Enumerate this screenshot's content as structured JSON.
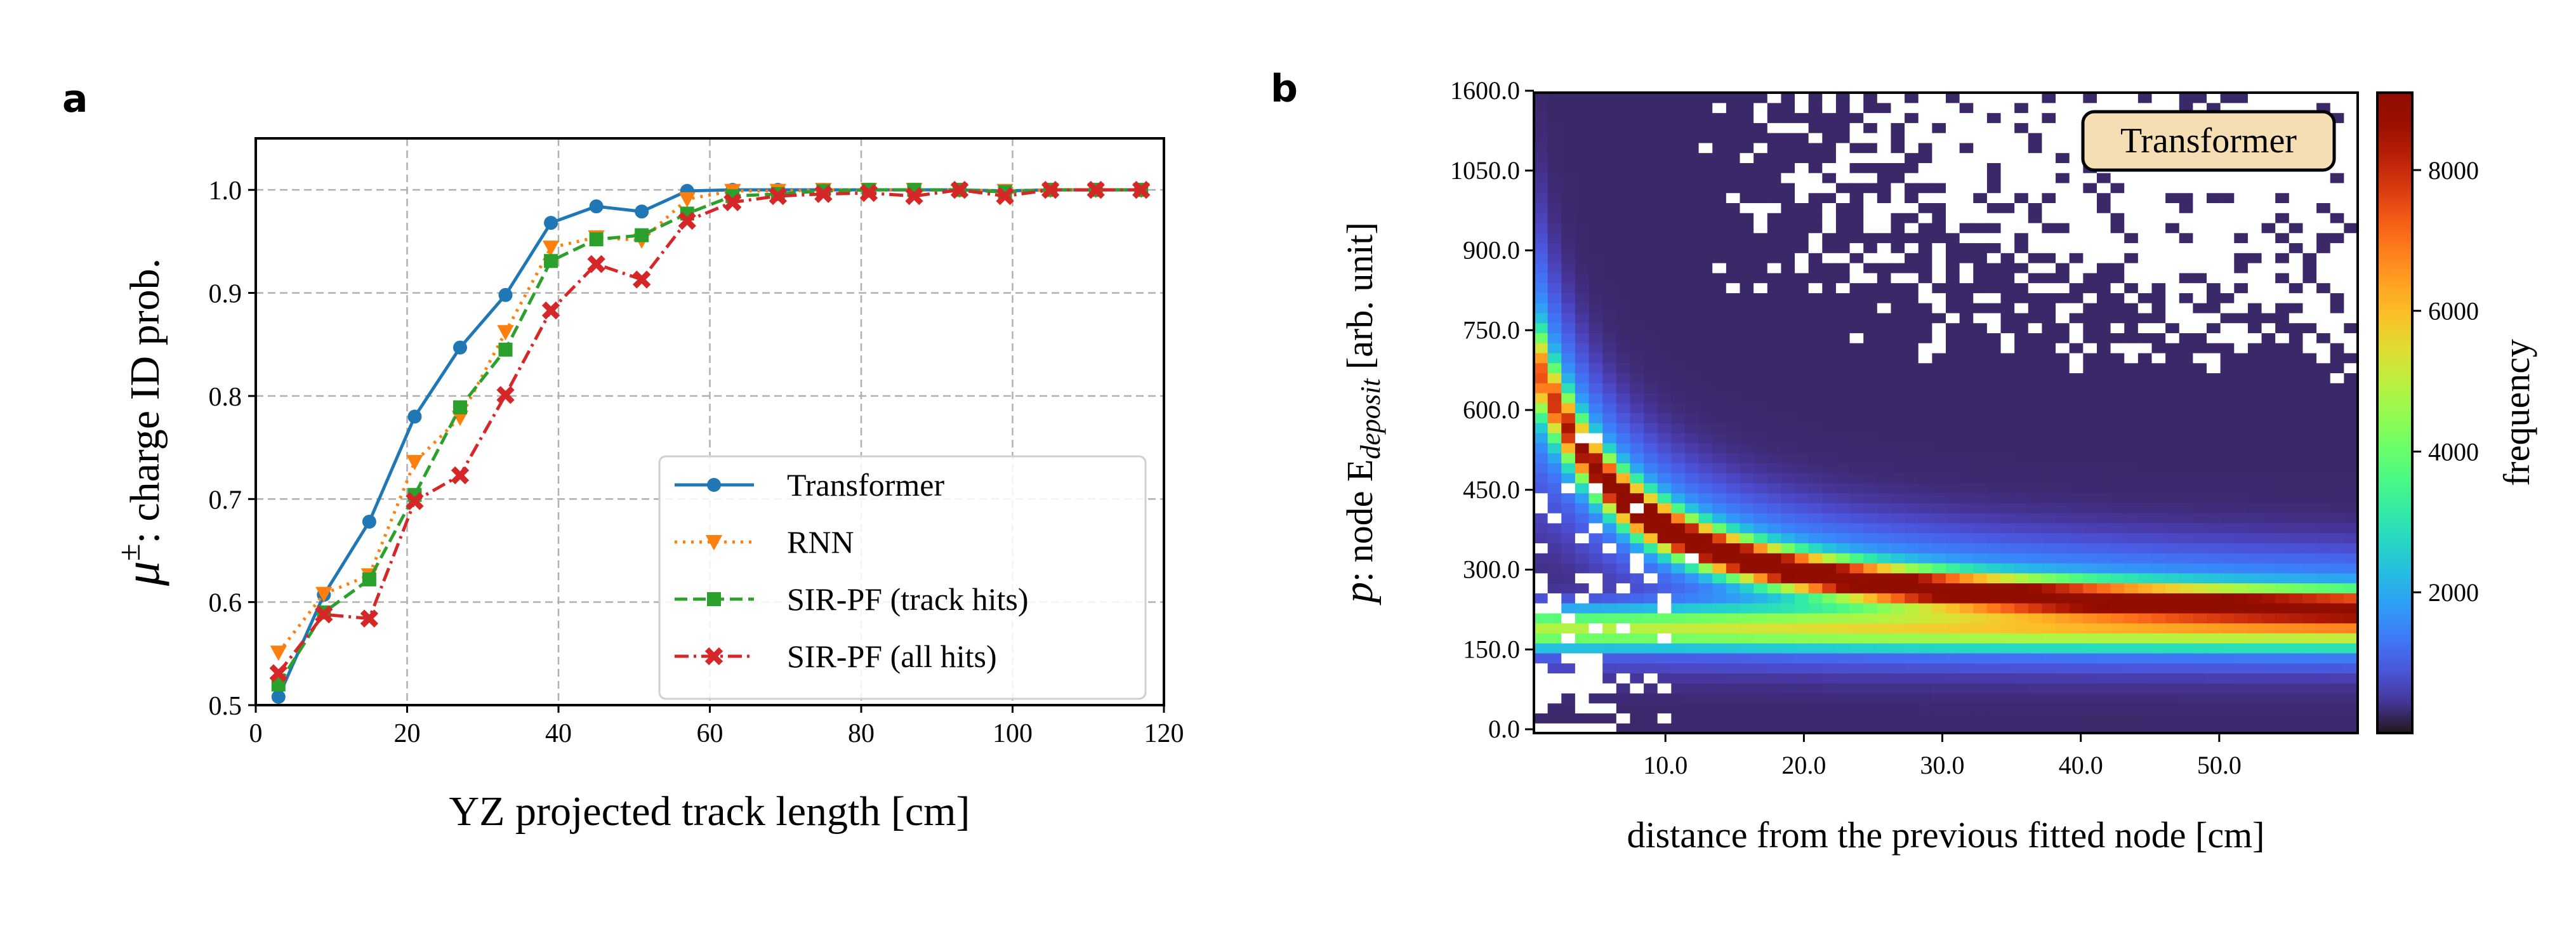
{
  "panels": {
    "a": "a",
    "b": "b"
  },
  "chart_data": [
    {
      "type": "line",
      "panel": "a",
      "xlabel": "YZ projected track length [cm]",
      "ylabel_symbol": "μ",
      "ylabel_sup": "±",
      "ylabel_rest": ": charge ID prob.",
      "xlim": [
        0,
        120
      ],
      "ylim": [
        0.5,
        1.05
      ],
      "xticks": [
        "0",
        "20",
        "40",
        "60",
        "80",
        "100",
        "120"
      ],
      "xtick_values": [
        0,
        20,
        40,
        60,
        80,
        100,
        120
      ],
      "yticks": [
        "0.5",
        "0.6",
        "0.7",
        "0.8",
        "0.9",
        "1.0"
      ],
      "ytick_values": [
        0.5,
        0.6,
        0.7,
        0.8,
        0.9,
        1.0
      ],
      "grid": true,
      "legend_placement": "lower-right",
      "x": [
        3,
        9,
        15,
        21,
        27,
        33,
        39,
        45,
        51,
        57,
        63,
        69,
        75,
        81,
        87,
        93,
        99,
        105,
        111,
        117
      ],
      "series": [
        {
          "name": "Transformer",
          "color": "#1f77b4",
          "marker": "circle",
          "linestyle": "solid",
          "values": [
            0.508,
            0.607,
            0.678,
            0.78,
            0.847,
            0.898,
            0.968,
            0.984,
            0.979,
            0.999,
            1.0,
            1.0,
            1.0,
            1.0,
            1.0,
            1.0,
            0.999,
            1.0,
            1.0,
            1.0
          ]
        },
        {
          "name": "RNN",
          "color": "#ff7f0e",
          "marker": "triangle-down",
          "linestyle": "dotted",
          "values": [
            0.551,
            0.608,
            0.626,
            0.736,
            0.779,
            0.862,
            0.944,
            0.954,
            0.951,
            0.991,
            0.999,
            0.999,
            1.0,
            1.0,
            1.0,
            1.0,
            0.999,
            1.0,
            1.0,
            1.0
          ]
        },
        {
          "name": "SIR-PF (track hits)",
          "color": "#2ca02c",
          "marker": "square",
          "linestyle": "dashed",
          "values": [
            0.52,
            0.59,
            0.622,
            0.704,
            0.789,
            0.845,
            0.931,
            0.952,
            0.956,
            0.977,
            0.994,
            0.996,
            0.999,
            1.0,
            1.0,
            1.0,
            0.998,
            1.0,
            1.0,
            1.0
          ]
        },
        {
          "name": "SIR-PF (all hits)",
          "color": "#d62728",
          "marker": "x",
          "linestyle": "dashdot",
          "values": [
            0.531,
            0.588,
            0.584,
            0.698,
            0.723,
            0.801,
            0.883,
            0.928,
            0.913,
            0.97,
            0.988,
            0.994,
            0.996,
            0.997,
            0.994,
            1.0,
            0.994,
            1.0,
            1.0,
            1.0
          ]
        }
      ]
    },
    {
      "type": "heatmap",
      "panel": "b",
      "xlabel": "distance from the previous fitted node [cm]",
      "ylabel_symbol": "p",
      "ylabel_mid": ": node E",
      "ylabel_sub": "deposit",
      "ylabel_rest": " [arb. unit]",
      "xlim": [
        0.5,
        60
      ],
      "xticks": [
        "10.0",
        "20.0",
        "30.0",
        "40.0",
        "50.0"
      ],
      "xtick_values": [
        10,
        20,
        30,
        40,
        50
      ],
      "yticks": [
        "0.0",
        "150.0",
        "300.0",
        "450.0",
        "600.0",
        "750.0",
        "900.0",
        "1050.0",
        "1600.0"
      ],
      "colormap": "turbo",
      "empty_bin_color": "#ffffff",
      "colorbar": {
        "label": "frequency",
        "range": [
          0,
          9100
        ],
        "ticks": [
          "2000",
          "4000",
          "6000",
          "8000"
        ],
        "tick_values": [
          2000,
          4000,
          6000,
          8000
        ]
      },
      "annotation": {
        "text": "Transformer",
        "background": "#f5deb3"
      }
    }
  ]
}
